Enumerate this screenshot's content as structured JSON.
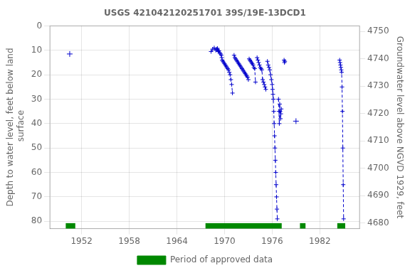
{
  "chart_data": {
    "type": "line",
    "title": "USGS 421042120251701 39S/19E-13DCD1",
    "ylabel": "Depth to water level, feet below land\n surface",
    "y2label": "Groundwater level above NGVD 1929, feet",
    "xlim": [
      1948,
      1987
    ],
    "xticks": [
      1952,
      1958,
      1964,
      1970,
      1976,
      1982
    ],
    "ylim": [
      83,
      0
    ],
    "yticks": [
      0,
      10,
      20,
      30,
      40,
      50,
      60,
      70,
      80
    ],
    "y2lim": [
      4678,
      4752
    ],
    "y2ticks": [
      4680,
      4690,
      4700,
      4710,
      4720,
      4730,
      4740,
      4750
    ],
    "grid": true,
    "legend": "bottom",
    "series": [
      {
        "color": "#0000cc",
        "line_style": "dashed",
        "marker": "plus",
        "x": [
          1950.5
        ],
        "values": [
          11.5
        ]
      },
      {
        "color": "#0000cc",
        "line_style": "dashed",
        "marker": "plus",
        "x": [
          1968.3,
          1968.5,
          1968.7,
          1968.9,
          1969.0,
          1969.1,
          1969.15,
          1969.2,
          1969.3,
          1969.4,
          1969.5,
          1969.6,
          1969.65,
          1969.7,
          1969.8,
          1969.9,
          1970.0,
          1970.1,
          1970.2,
          1970.3,
          1970.4,
          1970.5,
          1970.6,
          1970.7,
          1970.8,
          1970.9,
          1971.0
        ],
        "values": [
          10.5,
          9.5,
          9.0,
          10.0,
          9.5,
          9.2,
          9.8,
          10.5,
          10.2,
          11.0,
          11.5,
          12.0,
          13.0,
          14.0,
          14.5,
          15.0,
          15.5,
          16.0,
          16.5,
          17.0,
          17.5,
          18.0,
          19.0,
          20.0,
          22.0,
          24.0,
          27.5
        ]
      },
      {
        "color": "#0000cc",
        "line_style": "dashed",
        "marker": "plus",
        "x": [
          1971.2,
          1971.3,
          1971.4,
          1971.5,
          1971.6,
          1971.7,
          1971.8,
          1971.9,
          1972.0,
          1972.1,
          1972.2,
          1972.3,
          1972.4,
          1972.5,
          1972.6,
          1972.7,
          1972.8,
          1972.9,
          1973.0
        ],
        "values": [
          12.0,
          13.0,
          13.5,
          14.0,
          14.5,
          15.0,
          15.5,
          16.0,
          16.5,
          17.0,
          17.5,
          18.0,
          18.5,
          19.0,
          19.5,
          20.0,
          20.5,
          21.0,
          22.0
        ]
      },
      {
        "color": "#0000cc",
        "line_style": "dashed",
        "marker": "plus",
        "x": [
          1973.1,
          1973.2,
          1973.3,
          1973.4,
          1973.5,
          1973.6,
          1973.7,
          1973.8,
          1973.9
        ],
        "values": [
          13.5,
          14.0,
          14.5,
          15.0,
          15.5,
          16.0,
          17.0,
          17.5,
          23.0
        ]
      },
      {
        "color": "#0000cc",
        "line_style": "dashed",
        "marker": "plus",
        "x": [
          1974.1,
          1974.2,
          1974.3,
          1974.4,
          1974.5,
          1974.6,
          1974.7,
          1974.8,
          1974.9,
          1975.0,
          1975.1,
          1975.2
        ],
        "values": [
          13.0,
          14.0,
          15.0,
          16.0,
          17.0,
          17.5,
          18.0,
          22.0,
          23.0,
          24.0,
          25.0,
          26.0
        ]
      },
      {
        "color": "#0000cc",
        "line_style": "dashed",
        "marker": "plus",
        "x": [
          1975.4,
          1975.5,
          1975.6,
          1975.7,
          1975.8,
          1975.9,
          1976.0,
          1976.05,
          1976.1,
          1976.15,
          1976.2,
          1976.25,
          1976.3,
          1976.35,
          1976.4,
          1976.45,
          1976.5,
          1976.55,
          1976.6,
          1976.65
        ],
        "values": [
          14.5,
          16.0,
          17.0,
          18.0,
          20.0,
          22.0,
          24.0,
          26.0,
          28.0,
          30.0,
          35.0,
          40.0,
          45.0,
          50.0,
          55.0,
          60.0,
          65.0,
          70.0,
          75.0,
          79.0
        ]
      },
      {
        "color": "#0000cc",
        "line_style": "dashed",
        "marker": "plus",
        "x": [
          1976.8,
          1976.85,
          1976.9,
          1976.95,
          1977.0,
          1977.05,
          1977.1,
          1977.15
        ],
        "values": [
          30.0,
          35.0,
          40.0,
          32.0,
          35.0,
          38.0,
          36.0,
          34.0
        ]
      },
      {
        "color": "#0000cc",
        "line_style": "dashed",
        "marker": "plus",
        "x": [
          1977.5,
          1977.55,
          1977.6
        ],
        "values": [
          14.0,
          15.0,
          14.5
        ]
      },
      {
        "color": "#0000cc",
        "line_style": "dashed",
        "marker": "plus",
        "x": [
          1979.0
        ],
        "values": [
          39.0
        ]
      },
      {
        "color": "#0000cc",
        "line_style": "dashed",
        "marker": "plus",
        "x": [
          1984.5,
          1984.55,
          1984.6,
          1984.65,
          1984.7,
          1984.75,
          1984.8,
          1984.85,
          1984.9,
          1984.95,
          1985.0
        ],
        "values": [
          14.0,
          15.0,
          16.0,
          17.0,
          18.0,
          19.0,
          25.0,
          35.0,
          50.0,
          65.0,
          79.0
        ]
      },
      {
        "name": "Period of approved data",
        "type": "bar",
        "orientation": "horizontal",
        "color": "#008800",
        "ranges": [
          [
            1950.0,
            1951.2
          ],
          [
            1967.6,
            1977.2
          ],
          [
            1979.5,
            1980.2
          ],
          [
            1984.2,
            1985.2
          ]
        ],
        "y": 82.0,
        "bar_height": 2.5
      }
    ]
  }
}
